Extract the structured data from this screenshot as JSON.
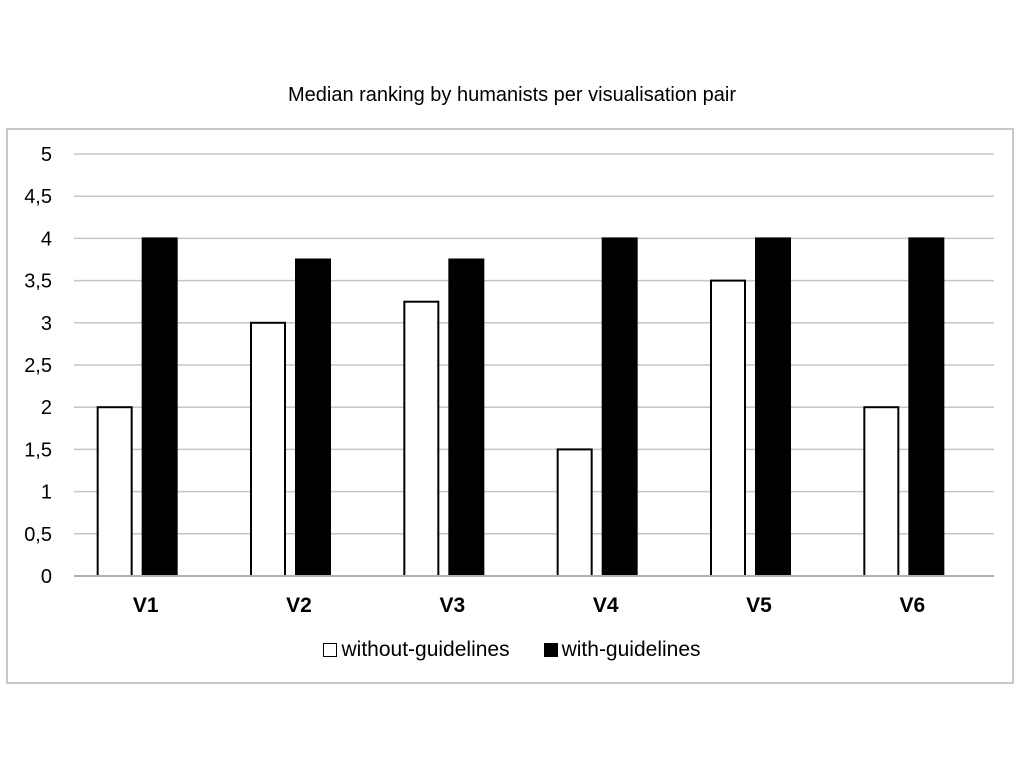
{
  "chart_data": {
    "type": "bar",
    "title": "Median ranking by humanists per visualisation pair",
    "xlabel": "",
    "ylabel": "",
    "categories": [
      "V1",
      "V2",
      "V3",
      "V4",
      "V5",
      "V6"
    ],
    "series": [
      {
        "name": "without-guidelines",
        "values": [
          2,
          3,
          3.25,
          1.5,
          3.5,
          2
        ],
        "color": "#ffffff"
      },
      {
        "name": "with-guidelines",
        "values": [
          4,
          3.75,
          3.75,
          4,
          4,
          4
        ],
        "color": "#000000"
      }
    ],
    "ylim": [
      0,
      5
    ],
    "yticks": [
      "0",
      "0,5",
      "1",
      "1,5",
      "2",
      "2,5",
      "3",
      "3,5",
      "4",
      "4,5",
      "5"
    ],
    "grid": true,
    "legend_position": "bottom"
  }
}
